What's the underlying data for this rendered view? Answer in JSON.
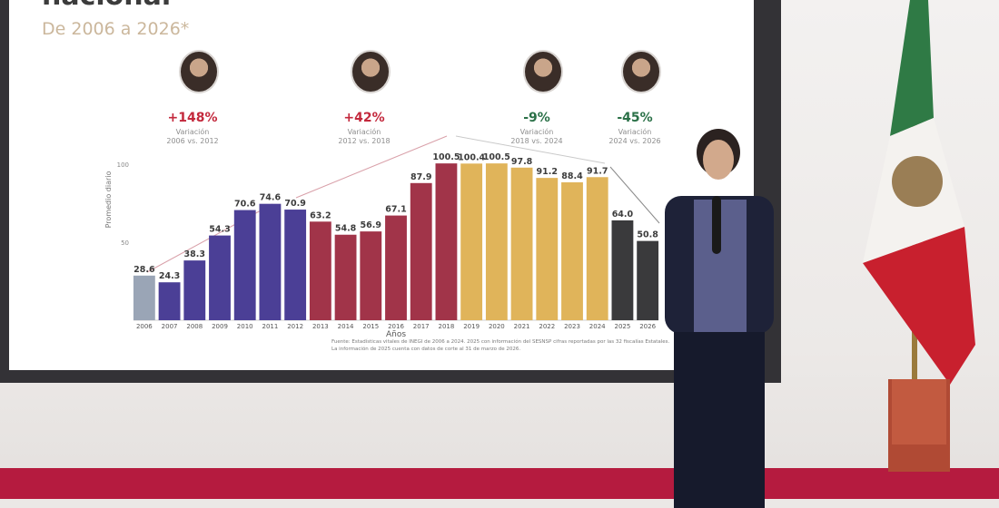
{
  "slide": {
    "title": "nacional",
    "subtitle": "De 2006 a 2026*",
    "variations": [
      {
        "percent": "+148%",
        "label": "Variación",
        "period": "2006 vs. 2012",
        "color": "#c3283c"
      },
      {
        "percent": "+42%",
        "label": "Variación",
        "period": "2012 vs. 2018",
        "color": "#c3283c"
      },
      {
        "percent": "-9%",
        "label": "Variación",
        "period": "2018 vs. 2024",
        "color": "#2a7047"
      },
      {
        "percent": "-45%",
        "label": "Variación",
        "period": "2024 vs. 2026",
        "color": "#2a7047"
      }
    ],
    "source_note": "Fuente: Estadísticas vitales de INEGI de 2006 a 2024. 2025 con información del SESNSP cifras reportadas por las 32 fiscalías Estatales. La información de 2025 cuenta con datos de corte al 31 de marzo de 2026."
  },
  "chart_data": {
    "type": "bar",
    "categories": [
      "2006",
      "2007",
      "2008",
      "2009",
      "2010",
      "2011",
      "2012",
      "2013",
      "2014",
      "2015",
      "2016",
      "2017",
      "2018",
      "2019",
      "2020",
      "2021",
      "2022",
      "2023",
      "2024",
      "2025",
      "2026"
    ],
    "values": [
      28.6,
      24.3,
      38.3,
      54.3,
      70.6,
      74.6,
      70.9,
      63.2,
      54.8,
      56.9,
      67.1,
      87.9,
      100.5,
      100.4,
      100.5,
      97.8,
      91.2,
      88.4,
      91.7,
      64.0,
      50.8
    ],
    "value_labels": [
      "28.6",
      "24.3",
      "38.3",
      "54.3",
      "70.6",
      "74.6",
      "70.9",
      "63.2",
      "54.8",
      "56.9",
      "67.1",
      "87.9",
      "100.5",
      "100.4",
      "100.5",
      "97.8",
      "91.2",
      "88.4",
      "91.7",
      "64.0",
      "50.8"
    ],
    "colors": [
      "#9aa5b6",
      "#4b3f96",
      "#4b3f96",
      "#4b3f96",
      "#4b3f96",
      "#4b3f96",
      "#4b3f96",
      "#a13449",
      "#a13449",
      "#a13449",
      "#a13449",
      "#a13449",
      "#a13449",
      "#e0b45a",
      "#e0b45a",
      "#e0b45a",
      "#e0b45a",
      "#e0b45a",
      "#e0b45a",
      "#3a3a3c",
      "#3a3a3c"
    ],
    "xlabel": "Años",
    "ylabel": "Promedio diario",
    "yticks": [
      50,
      100
    ],
    "ylim": [
      0,
      100
    ],
    "grid": false
  }
}
